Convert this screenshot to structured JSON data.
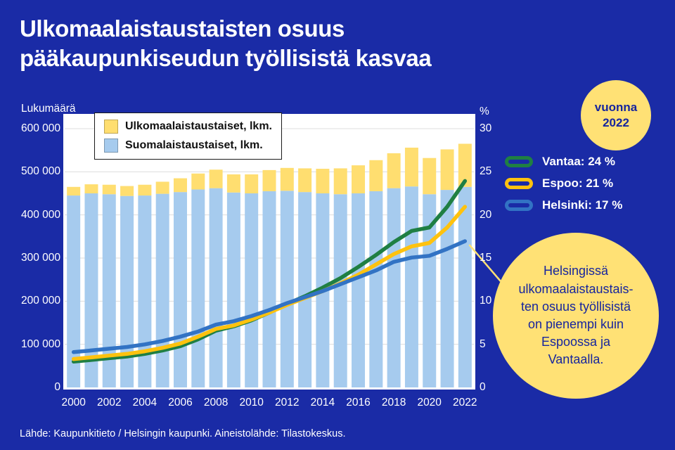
{
  "colors": {
    "background": "#1A2BA6",
    "panel_white": "#FFFFFF",
    "accent_yellow": "#FFE175",
    "grid_gray": "#DDDDDD",
    "text_dark_blue": "#16259E"
  },
  "title": {
    "line1": "Ulkomaalaistaustaisten osuus",
    "line2": "pääkaupunkiseudun työllisistä kasvaa"
  },
  "left_axis": {
    "label": "Lukumäärä",
    "ticks": [
      "600 000",
      "500 000",
      "400 000",
      "300 000",
      "200 000",
      "100 000",
      "0"
    ]
  },
  "right_axis": {
    "label": "%",
    "ticks": [
      "30",
      "25",
      "20",
      "15",
      "10",
      "5",
      "0"
    ]
  },
  "x_axis": {
    "ticks": [
      "2000",
      "2002",
      "2004",
      "2006",
      "2008",
      "2010",
      "2012",
      "2014",
      "2016",
      "2018",
      "2020",
      "2022"
    ]
  },
  "legend": {
    "items": [
      {
        "label": "Ulkomaalaistaustaiset, lkm.",
        "color": "#FFDE70"
      },
      {
        "label": "Suomalaistaustaiset, lkm.",
        "color": "#A6CBEE"
      }
    ]
  },
  "badge": {
    "text": "vuonna\n2022"
  },
  "line_legend": [
    {
      "label": "Vantaa: 24 %",
      "color": "#1F7F43"
    },
    {
      "label": "Espoo: 21 %",
      "color": "#FFC20E"
    },
    {
      "label": "Helsinki: 17 %",
      "color": "#3273C4"
    }
  ],
  "callout": {
    "text": "Helsingissä\nulkomaalaistaustais-\nten osuus työllisistä\non pienempi kuin\nEspoossa ja\nVantaalla."
  },
  "footer": "Lähde: Kaupunkitieto / Helsingin kaupunki. Aineistolähde: Tilastokeskus.",
  "chart_data": {
    "type": "combo",
    "title": "Ulkomaalaistaustaisten osuus pääkaupunkiseudun työllisistä kasvaa",
    "years": [
      2000,
      2001,
      2002,
      2003,
      2004,
      2005,
      2006,
      2007,
      2008,
      2009,
      2010,
      2011,
      2012,
      2013,
      2014,
      2015,
      2016,
      2017,
      2018,
      2019,
      2020,
      2021,
      2022
    ],
    "bars": {
      "stacked": true,
      "y_axis": {
        "label": "Lukumäärä",
        "min": 0,
        "max": 600000,
        "tick_step": 100000
      },
      "series": [
        {
          "name": "Suomalaistaustaiset, lkm.",
          "color": "#A6CBEE",
          "values": [
            445000,
            450000,
            448000,
            444000,
            445000,
            449000,
            453000,
            459000,
            462000,
            452000,
            450000,
            455000,
            456000,
            453000,
            450000,
            448000,
            450000,
            455000,
            462000,
            466000,
            448000,
            458000,
            465000
          ]
        },
        {
          "name": "Ulkomaalaistaustaiset, lkm.",
          "color": "#FFDE70",
          "values": [
            20000,
            21000,
            22000,
            23000,
            25000,
            28000,
            32000,
            37000,
            43000,
            42000,
            44000,
            49000,
            53000,
            55000,
            57000,
            60000,
            65000,
            72000,
            81000,
            90000,
            84000,
            94000,
            100000
          ]
        }
      ]
    },
    "lines": {
      "y_axis": {
        "label": "%",
        "min": 0,
        "max": 30,
        "tick_step": 5
      },
      "series": [
        {
          "name": "Vantaa",
          "color": "#1F7F43",
          "values": [
            3.0,
            3.2,
            3.4,
            3.6,
            3.9,
            4.3,
            4.8,
            5.6,
            6.6,
            7.1,
            7.8,
            8.7,
            9.7,
            10.6,
            11.6,
            12.7,
            14.0,
            15.4,
            16.9,
            18.2,
            18.6,
            21.0,
            24.0
          ]
        },
        {
          "name": "Espoo",
          "color": "#FFC20E",
          "values": [
            3.3,
            3.5,
            3.7,
            3.9,
            4.2,
            4.6,
            5.1,
            5.9,
            6.8,
            7.2,
            7.9,
            8.7,
            9.6,
            10.4,
            11.2,
            12.1,
            13.1,
            14.3,
            15.5,
            16.4,
            16.8,
            18.6,
            21.0
          ]
        },
        {
          "name": "Helsinki",
          "color": "#3273C4",
          "values": [
            4.1,
            4.3,
            4.5,
            4.7,
            5.0,
            5.4,
            5.9,
            6.5,
            7.3,
            7.7,
            8.3,
            9.0,
            9.8,
            10.5,
            11.2,
            12.0,
            12.8,
            13.6,
            14.6,
            15.1,
            15.3,
            16.1,
            17.0
          ]
        }
      ]
    }
  }
}
